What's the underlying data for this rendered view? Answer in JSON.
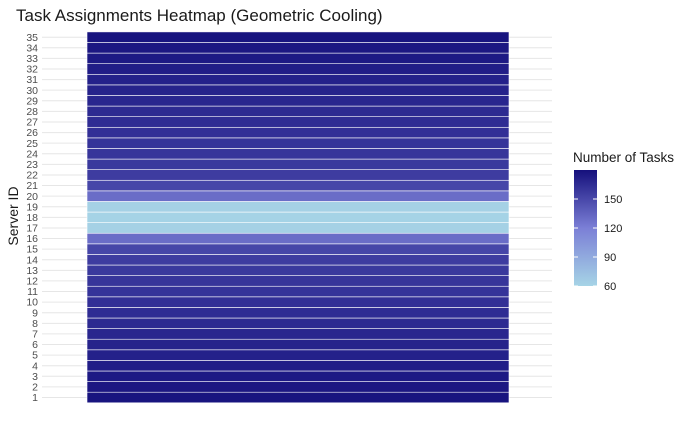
{
  "chart_data": {
    "type": "heatmap",
    "title": "Task Assignments Heatmap (Geometric Cooling)",
    "xlabel": "",
    "ylabel": "Server ID",
    "y_categories": [
      "1",
      "2",
      "3",
      "4",
      "5",
      "6",
      "7",
      "8",
      "9",
      "10",
      "11",
      "12",
      "13",
      "14",
      "15",
      "16",
      "17",
      "18",
      "19",
      "20",
      "21",
      "22",
      "23",
      "24",
      "25",
      "26",
      "27",
      "28",
      "29",
      "30",
      "31",
      "32",
      "33",
      "34",
      "35"
    ],
    "values": [
      178,
      176,
      175,
      173,
      171,
      170,
      168,
      166,
      165,
      163,
      161,
      160,
      158,
      156,
      151,
      130,
      62,
      61,
      62,
      130,
      151,
      156,
      158,
      160,
      161,
      163,
      165,
      166,
      168,
      170,
      171,
      173,
      175,
      176,
      178
    ],
    "legend": {
      "title": "Number of Tasks",
      "ticks": [
        60,
        90,
        120,
        150
      ],
      "range": [
        60,
        180
      ],
      "low_color": "#a6d4e6",
      "mid_color": "#7b7fd6",
      "high_color": "#15107c",
      "placement": "right"
    },
    "grid": true
  }
}
